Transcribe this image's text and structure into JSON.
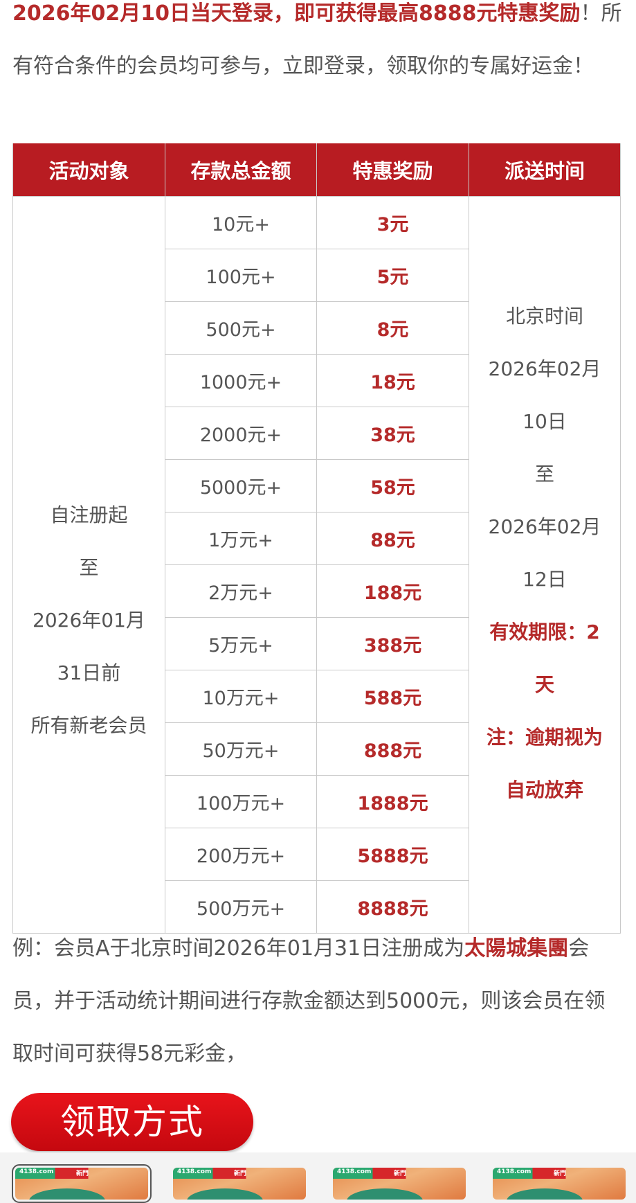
{
  "intro": {
    "highlight": "2026年02月10日当天登录，即可获得最高8888元特惠奖励",
    "rest": "！所有符合条件的会员均可参与，立即登录，领取你的专属好运金！"
  },
  "table": {
    "headers": [
      "活动对象",
      "存款总金额",
      "特惠奖励",
      "派送时间"
    ],
    "target_lines": [
      "自注册起",
      "至",
      "2026年01月",
      "31日前",
      "所有新老会员"
    ],
    "rows": [
      {
        "deposit": "10元+",
        "bonus": "3元"
      },
      {
        "deposit": "100元+",
        "bonus": "5元"
      },
      {
        "deposit": "500元+",
        "bonus": "8元"
      },
      {
        "deposit": "1000元+",
        "bonus": "18元"
      },
      {
        "deposit": "2000元+",
        "bonus": "38元"
      },
      {
        "deposit": "5000元+",
        "bonus": "58元"
      },
      {
        "deposit": "1万元+",
        "bonus": "88元"
      },
      {
        "deposit": "2万元+",
        "bonus": "188元"
      },
      {
        "deposit": "5万元+",
        "bonus": "388元"
      },
      {
        "deposit": "10万元+",
        "bonus": "588元"
      },
      {
        "deposit": "50万元+",
        "bonus": "888元"
      },
      {
        "deposit": "100万元+",
        "bonus": "1888元"
      },
      {
        "deposit": "200万元+",
        "bonus": "5888元"
      },
      {
        "deposit": "500万元+",
        "bonus": "8888元"
      }
    ],
    "time_lines": [
      "北京时间",
      "2026年02月",
      "10日",
      "至",
      "2026年02月",
      "12日"
    ],
    "time_notes": [
      "有效期限：2",
      "天",
      "注：逾期视为",
      "自动放弃"
    ]
  },
  "example": {
    "part1": "例：会员A于北京时间2026年01月31日注册成为",
    "brand": "太陽城集團",
    "part2": "会员，并于活动统计期间进行存款金额达到5000元，则该会员在领取时间可获得58元彩金，"
  },
  "claim_button": "领取方式",
  "thumbnails": [
    {
      "site": "4138.com",
      "tag": "新門"
    },
    {
      "site": "4138.com",
      "tag": "新門"
    },
    {
      "site": "4138.com",
      "tag": "新門"
    },
    {
      "site": "4138.com",
      "tag": "新門"
    }
  ],
  "colors": {
    "accent": "#b81c22",
    "highlight_text": "#b52a2a",
    "button": "#e8141b"
  }
}
